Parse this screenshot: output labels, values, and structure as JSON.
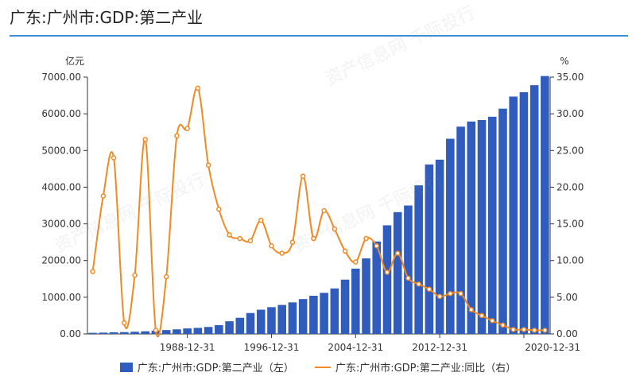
{
  "header": {
    "title": "广东:广州市:GDP:第二产业"
  },
  "colors": {
    "bar": "#2f5cbd",
    "line": "#f08a24",
    "rule": "#3a8fd8"
  },
  "chart_data": {
    "type": "bar",
    "title": "广东:广州市:GDP:第二产业",
    "left_unit": "亿元",
    "right_unit": "%",
    "ylim_left": [
      0,
      7000
    ],
    "ylim_right": [
      0,
      35
    ],
    "yticks_left": [
      "0.00",
      "1000.00",
      "2000.00",
      "3000.00",
      "4000.00",
      "5000.00",
      "6000.00",
      "7000.00"
    ],
    "yticks_right": [
      "0.00",
      "5.00",
      "10.00",
      "15.00",
      "20.00",
      "25.00",
      "30.00",
      "35.00"
    ],
    "xtick_labels": [
      "1988-12-31",
      "1996-12-31",
      "2004-12-31",
      "2012-12-31",
      "2020-12-31"
    ],
    "xtick_years": [
      1988,
      1996,
      2004,
      2012,
      2020
    ],
    "grid": false,
    "legend_position": "bottom",
    "years": [
      1979,
      1980,
      1981,
      1982,
      1983,
      1984,
      1985,
      1986,
      1987,
      1988,
      1989,
      1990,
      1991,
      1992,
      1993,
      1994,
      1995,
      1996,
      1997,
      1998,
      1999,
      2000,
      2001,
      2002,
      2003,
      2004,
      2005,
      2006,
      2007,
      2008,
      2009,
      2010,
      2011,
      2012,
      2013,
      2014,
      2015,
      2016,
      2017,
      2018,
      2019,
      2020,
      2021,
      2022
    ],
    "series": [
      {
        "name": "广东:广州市:GDP:第二产业（左）",
        "axis": "left",
        "type": "bar",
        "values": [
          30,
          36,
          45,
          50,
          60,
          72,
          90,
          105,
          125,
          150,
          165,
          190,
          240,
          345,
          440,
          570,
          660,
          730,
          790,
          860,
          950,
          1040,
          1120,
          1240,
          1480,
          1780,
          2060,
          2520,
          2960,
          3320,
          3500,
          4050,
          4620,
          4750,
          5320,
          5650,
          5790,
          5830,
          5920,
          6140,
          6470,
          6590,
          6780,
          7030
        ]
      },
      {
        "name": "广东:广州市:GDP:第二产业:同比（右）",
        "axis": "right",
        "type": "line",
        "values": [
          8.5,
          18.8,
          24.0,
          1.5,
          8.0,
          26.5,
          0.5,
          7.8,
          27.0,
          28.0,
          33.5,
          23.0,
          17.0,
          13.5,
          13.0,
          12.7,
          15.5,
          12.0,
          11.0,
          12.5,
          21.5,
          13.0,
          16.8,
          14.3,
          11.3,
          9.8,
          13.0,
          12.0,
          8.4,
          11.0,
          7.6,
          6.8,
          6.1,
          5.1,
          5.5,
          5.5,
          3.3,
          2.5,
          1.8,
          1.2,
          0.6,
          0.6,
          0.5,
          0.5
        ]
      }
    ]
  }
}
